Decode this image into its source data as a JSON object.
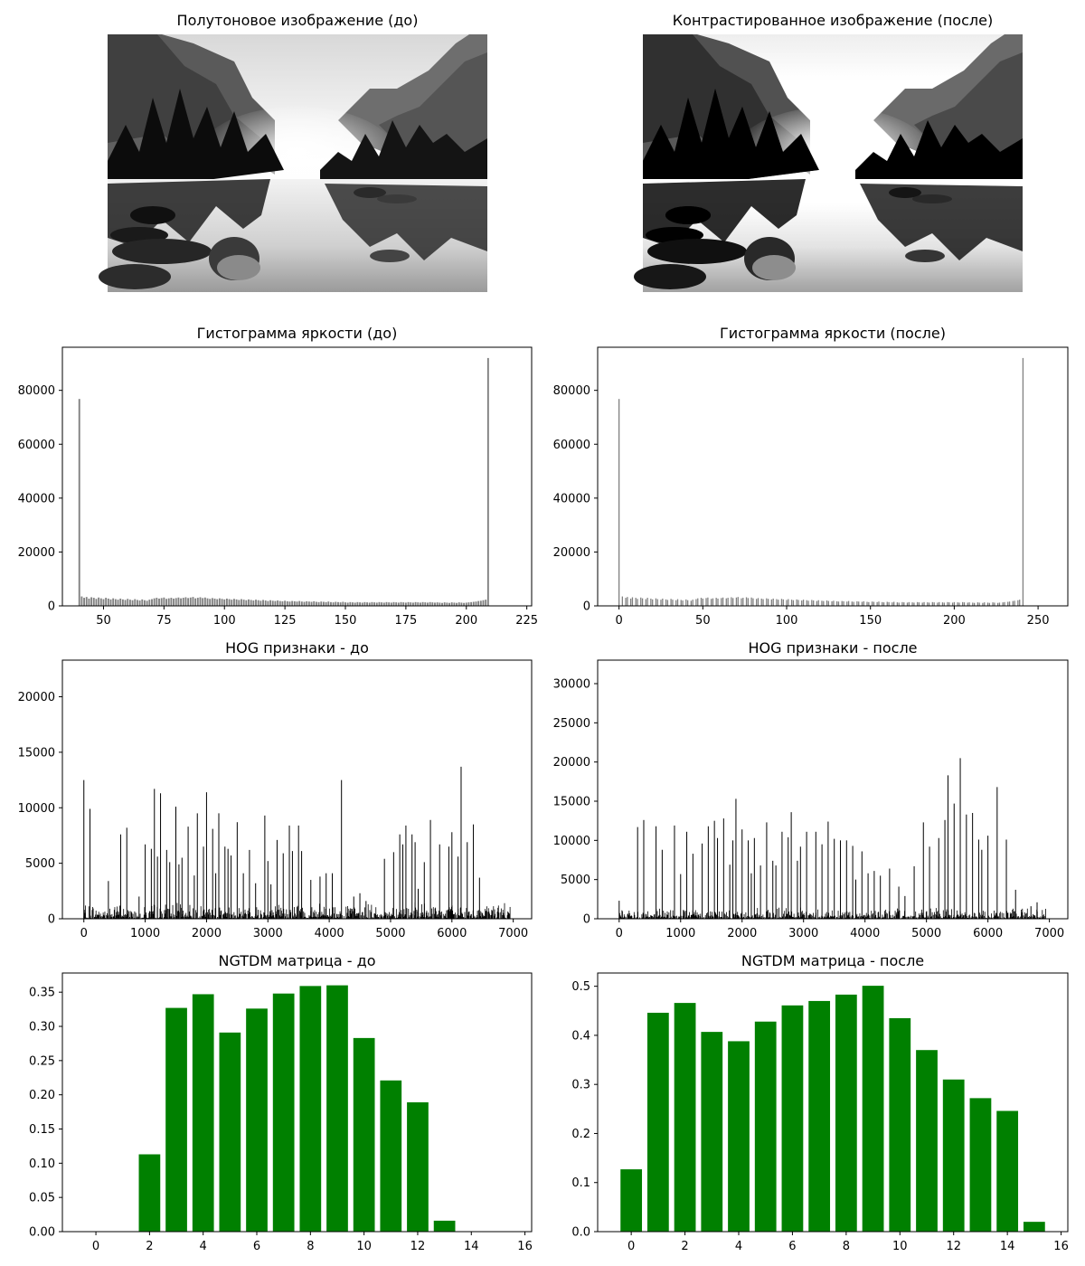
{
  "chart_data": [
    {
      "type": "image",
      "title": "Полутоновое изображение (до)"
    },
    {
      "type": "image",
      "title": "Контрастированное изображение (после)"
    },
    {
      "type": "bar",
      "title": "Гистограмма яркости (до)",
      "xlabel": "",
      "ylabel": "",
      "xlim": [
        33,
        227
      ],
      "ylim": [
        0,
        96000
      ],
      "xticks": [
        50,
        75,
        100,
        125,
        150,
        175,
        200,
        225
      ],
      "yticks": [
        0,
        20000,
        40000,
        60000,
        80000
      ],
      "x_start": 40,
      "x_step": 1,
      "values": [
        76800,
        3500,
        3000,
        3300,
        2700,
        3200,
        3000,
        2600,
        3100,
        2800,
        2500,
        3000,
        2700,
        2400,
        2800,
        2500,
        2300,
        2700,
        2400,
        2200,
        2600,
        2300,
        2100,
        2500,
        2200,
        2000,
        2400,
        2100,
        1900,
        2300,
        2500,
        2800,
        3000,
        2700,
        2900,
        3100,
        2600,
        2800,
        3000,
        2700,
        2900,
        3100,
        2800,
        3000,
        3200,
        2900,
        3100,
        3300,
        2800,
        3000,
        3200,
        2900,
        3100,
        2800,
        2600,
        2900,
        2700,
        2500,
        2800,
        2600,
        2400,
        2700,
        2500,
        2300,
        2600,
        2400,
        2200,
        2500,
        2300,
        2100,
        2400,
        2200,
        2000,
        2300,
        2100,
        1900,
        2200,
        2000,
        1800,
        2100,
        1900,
        1800,
        2000,
        1800,
        1700,
        1900,
        1700,
        1600,
        1800,
        1700,
        1600,
        1800,
        1600,
        1500,
        1700,
        1600,
        1500,
        1700,
        1500,
        1400,
        1600,
        1500,
        1400,
        1600,
        1400,
        1300,
        1500,
        1400,
        1300,
        1500,
        1300,
        1200,
        1400,
        1300,
        1200,
        1400,
        1300,
        1200,
        1400,
        1300,
        1200,
        1400,
        1300,
        1200,
        1400,
        1300,
        1200,
        1400,
        1300,
        1200,
        1400,
        1300,
        1200,
        1400,
        1300,
        1200,
        1400,
        1300,
        1200,
        1400,
        1300,
        1200,
        1400,
        1300,
        1200,
        1400,
        1300,
        1200,
        1300,
        1200,
        1100,
        1300,
        1200,
        1100,
        1300,
        1200,
        1100,
        1300,
        1200,
        1100,
        1200,
        1300,
        1400,
        1500,
        1600,
        1800,
        1900,
        2100,
        2300,
        92000
      ]
    },
    {
      "type": "bar",
      "title": "Гистограмма яркости (после)",
      "xlabel": "",
      "ylabel": "",
      "xlim": [
        -12.75,
        267.75
      ],
      "ylim": [
        0,
        96000
      ],
      "xticks": [
        0,
        50,
        100,
        150,
        200,
        250
      ],
      "yticks": [
        0,
        20000,
        40000,
        60000,
        80000
      ],
      "x_start": 0,
      "x_step": 1,
      "values": [
        76800,
        0,
        3500,
        0,
        3000,
        3300,
        0,
        2700,
        3200,
        0,
        3000,
        2600,
        0,
        3100,
        2800,
        0,
        2500,
        3000,
        0,
        2700,
        2400,
        0,
        2800,
        2500,
        0,
        2300,
        2700,
        0,
        2400,
        2200,
        0,
        2600,
        2300,
        0,
        2100,
        2500,
        0,
        2200,
        2000,
        0,
        2400,
        2100,
        0,
        1900,
        2300,
        0,
        2500,
        2800,
        0,
        3000,
        2700,
        0,
        2900,
        3100,
        0,
        2600,
        2800,
        0,
        3000,
        2700,
        0,
        2900,
        3100,
        0,
        2800,
        3000,
        0,
        3200,
        2900,
        0,
        3100,
        3300,
        0,
        2800,
        3000,
        0,
        3200,
        2900,
        0,
        3100,
        2800,
        0,
        2600,
        2900,
        0,
        2700,
        2500,
        0,
        2800,
        2600,
        0,
        2400,
        2700,
        0,
        2500,
        2300,
        0,
        2600,
        2400,
        0,
        2200,
        2500,
        0,
        2300,
        2100,
        0,
        2400,
        2200,
        0,
        2000,
        2300,
        0,
        2100,
        1900,
        0,
        2200,
        2000,
        0,
        1800,
        2100,
        0,
        1900,
        1800,
        0,
        2000,
        1800,
        0,
        1700,
        1900,
        0,
        1700,
        1600,
        0,
        1800,
        1700,
        0,
        1600,
        1800,
        0,
        1600,
        1500,
        0,
        1700,
        1600,
        0,
        1500,
        1700,
        0,
        1500,
        1400,
        0,
        1600,
        1500,
        0,
        1400,
        1600,
        0,
        1400,
        1300,
        0,
        1500,
        1400,
        0,
        1300,
        1500,
        0,
        1300,
        1200,
        0,
        1400,
        1300,
        0,
        1200,
        1400,
        0,
        1300,
        1200,
        0,
        1400,
        1300,
        0,
        1200,
        1400,
        0,
        1300,
        1200,
        0,
        1400,
        1300,
        0,
        1200,
        1400,
        0,
        1300,
        1200,
        0,
        1400,
        1300,
        0,
        1200,
        1400,
        0,
        1300,
        1200,
        0,
        1400,
        1300,
        0,
        1200,
        1300,
        0,
        1200,
        1100,
        0,
        1300,
        1200,
        0,
        1100,
        1300,
        0,
        1200,
        1100,
        0,
        1300,
        1200,
        0,
        1100,
        1200,
        0,
        1300,
        1400,
        0,
        1500,
        1600,
        0,
        1800,
        1900,
        0,
        2100,
        2300,
        0,
        92000
      ]
    },
    {
      "type": "bar",
      "title": "HOG признаки - до",
      "xlabel": "",
      "ylabel": "",
      "xlim": [
        -350,
        7300
      ],
      "ylim": [
        0,
        23300
      ],
      "xticks": [
        0,
        1000,
        2000,
        3000,
        4000,
        5000,
        6000,
        7000
      ],
      "yticks": [
        0,
        5000,
        10000,
        15000,
        20000
      ],
      "peaks": [
        [
          0,
          12500
        ],
        [
          100,
          9900
        ],
        [
          400,
          3400
        ],
        [
          600,
          7600
        ],
        [
          700,
          8200
        ],
        [
          900,
          2000
        ],
        [
          1000,
          6700
        ],
        [
          1100,
          6300
        ],
        [
          1150,
          11700
        ],
        [
          1200,
          5600
        ],
        [
          1250,
          11300
        ],
        [
          1350,
          6200
        ],
        [
          1400,
          5100
        ],
        [
          1500,
          10100
        ],
        [
          1550,
          4900
        ],
        [
          1600,
          5500
        ],
        [
          1700,
          8300
        ],
        [
          1800,
          3900
        ],
        [
          1850,
          9500
        ],
        [
          1950,
          6500
        ],
        [
          2000,
          11400
        ],
        [
          2100,
          8100
        ],
        [
          2150,
          4100
        ],
        [
          2200,
          9500
        ],
        [
          2300,
          6500
        ],
        [
          2350,
          6300
        ],
        [
          2400,
          5700
        ],
        [
          2500,
          8700
        ],
        [
          2600,
          4100
        ],
        [
          2700,
          6200
        ],
        [
          2800,
          3200
        ],
        [
          2950,
          9300
        ],
        [
          3000,
          5200
        ],
        [
          3050,
          3100
        ],
        [
          3150,
          7100
        ],
        [
          3250,
          5900
        ],
        [
          3350,
          8400
        ],
        [
          3400,
          6100
        ],
        [
          3500,
          8400
        ],
        [
          3550,
          6100
        ],
        [
          3700,
          3500
        ],
        [
          3850,
          3800
        ],
        [
          3950,
          4100
        ],
        [
          4050,
          4100
        ],
        [
          4200,
          12500
        ],
        [
          4400,
          2000
        ],
        [
          4500,
          2300
        ],
        [
          4600,
          1600
        ],
        [
          4900,
          5400
        ],
        [
          5050,
          6000
        ],
        [
          5150,
          7600
        ],
        [
          5200,
          6700
        ],
        [
          5250,
          8400
        ],
        [
          5350,
          7600
        ],
        [
          5400,
          6900
        ],
        [
          5450,
          2700
        ],
        [
          5550,
          5100
        ],
        [
          5650,
          8900
        ],
        [
          5800,
          6700
        ],
        [
          5950,
          6500
        ],
        [
          6000,
          7800
        ],
        [
          6100,
          5600
        ],
        [
          6150,
          13700
        ],
        [
          6250,
          6900
        ],
        [
          6350,
          8500
        ],
        [
          6450,
          3700
        ],
        [
          6550,
          700
        ],
        [
          6650,
          800
        ],
        [
          6850,
          300
        ]
      ],
      "background_noise": [
        0,
        1500
      ]
    },
    {
      "type": "bar",
      "title": "HOG признаки - после",
      "xlabel": "",
      "ylabel": "",
      "xlim": [
        -350,
        7300
      ],
      "ylim": [
        0,
        33000
      ],
      "xticks": [
        0,
        1000,
        2000,
        3000,
        4000,
        5000,
        6000,
        7000
      ],
      "yticks": [
        0,
        5000,
        10000,
        15000,
        20000,
        25000,
        30000
      ],
      "peaks": [
        [
          0,
          2300
        ],
        [
          300,
          11700
        ],
        [
          400,
          12600
        ],
        [
          600,
          11800
        ],
        [
          700,
          8800
        ],
        [
          900,
          11900
        ],
        [
          1000,
          5700
        ],
        [
          1100,
          11100
        ],
        [
          1200,
          8300
        ],
        [
          1350,
          9600
        ],
        [
          1450,
          11800
        ],
        [
          1550,
          12500
        ],
        [
          1600,
          10300
        ],
        [
          1700,
          12800
        ],
        [
          1800,
          6900
        ],
        [
          1850,
          10000
        ],
        [
          1900,
          15300
        ],
        [
          2000,
          11400
        ],
        [
          2100,
          10000
        ],
        [
          2150,
          5800
        ],
        [
          2200,
          10300
        ],
        [
          2300,
          6800
        ],
        [
          2400,
          12300
        ],
        [
          2500,
          7400
        ],
        [
          2550,
          6800
        ],
        [
          2650,
          11100
        ],
        [
          2750,
          10400
        ],
        [
          2800,
          13600
        ],
        [
          2900,
          7400
        ],
        [
          2950,
          9200
        ],
        [
          3050,
          11100
        ],
        [
          3200,
          11100
        ],
        [
          3300,
          9500
        ],
        [
          3400,
          12400
        ],
        [
          3500,
          10200
        ],
        [
          3600,
          10000
        ],
        [
          3700,
          10000
        ],
        [
          3800,
          9300
        ],
        [
          3850,
          5000
        ],
        [
          3950,
          8600
        ],
        [
          4050,
          5800
        ],
        [
          4150,
          6100
        ],
        [
          4250,
          5500
        ],
        [
          4400,
          6400
        ],
        [
          4550,
          4100
        ],
        [
          4650,
          2900
        ],
        [
          4800,
          6700
        ],
        [
          4950,
          12300
        ],
        [
          5050,
          9200
        ],
        [
          5200,
          10300
        ],
        [
          5300,
          12600
        ],
        [
          5350,
          18300
        ],
        [
          5450,
          14700
        ],
        [
          5550,
          20500
        ],
        [
          5650,
          13300
        ],
        [
          5750,
          13500
        ],
        [
          5850,
          10100
        ],
        [
          5900,
          8800
        ],
        [
          6000,
          10600
        ],
        [
          6150,
          16800
        ],
        [
          6300,
          10100
        ],
        [
          6450,
          3700
        ],
        [
          6550,
          800
        ],
        [
          6700,
          1600
        ],
        [
          6800,
          2100
        ]
      ],
      "background_noise": [
        0,
        1500
      ]
    },
    {
      "type": "bar",
      "title": "NGTDM матрица - до",
      "xlabel": "",
      "ylabel": "",
      "color": "#008000",
      "xlim": [
        -1.25,
        16.25
      ],
      "ylim": [
        0,
        0.378
      ],
      "xticks": [
        0,
        2,
        4,
        6,
        8,
        10,
        12,
        14,
        16
      ],
      "yticks": [
        0.0,
        0.05,
        0.1,
        0.15,
        0.2,
        0.25,
        0.3,
        0.35
      ],
      "ytick_labels": [
        "0.00",
        "0.05",
        "0.10",
        "0.15",
        "0.20",
        "0.25",
        "0.30",
        "0.35"
      ],
      "categories": [
        0,
        1,
        2,
        3,
        4,
        5,
        6,
        7,
        8,
        9,
        10,
        11,
        12,
        13,
        14,
        15
      ],
      "values": [
        0,
        0,
        0.113,
        0.327,
        0.347,
        0.291,
        0.326,
        0.348,
        0.359,
        0.36,
        0.283,
        0.221,
        0.189,
        0.016,
        0,
        0
      ]
    },
    {
      "type": "bar",
      "title": "NGTDM матрица - после",
      "xlabel": "",
      "ylabel": "",
      "color": "#008000",
      "xlim": [
        -1.25,
        16.25
      ],
      "ylim": [
        0,
        0.527
      ],
      "xticks": [
        0,
        2,
        4,
        6,
        8,
        10,
        12,
        14,
        16
      ],
      "yticks": [
        0.0,
        0.1,
        0.2,
        0.3,
        0.4,
        0.5
      ],
      "ytick_labels": [
        "0.0",
        "0.1",
        "0.2",
        "0.3",
        "0.4",
        "0.5"
      ],
      "categories": [
        0,
        1,
        2,
        3,
        4,
        5,
        6,
        7,
        8,
        9,
        10,
        11,
        12,
        13,
        14,
        15
      ],
      "values": [
        0.127,
        0.446,
        0.466,
        0.407,
        0.388,
        0.428,
        0.461,
        0.47,
        0.483,
        0.501,
        0.435,
        0.37,
        0.31,
        0.272,
        0.246,
        0.02
      ]
    }
  ]
}
